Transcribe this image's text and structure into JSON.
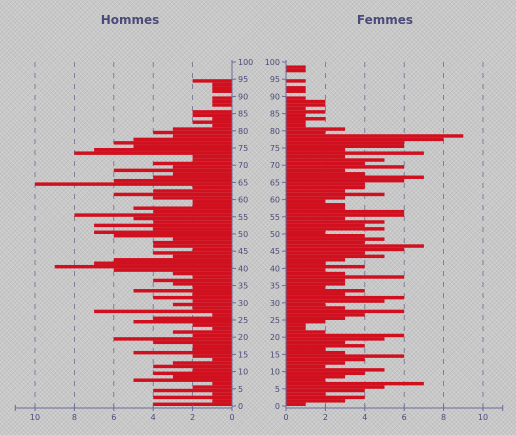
{
  "colors": {
    "bar": "#d0101e",
    "axis": "#6a6a9a",
    "grid": "#6e6e8e",
    "label": "#4b4b7a"
  },
  "chart_data": [
    {
      "type": "bar",
      "orientation": "horizontal",
      "title": "Hommes",
      "direction": "right-to-left",
      "xlim": [
        0,
        11
      ],
      "x_ticks": [
        0,
        2,
        4,
        6,
        8,
        10
      ],
      "y_ticks": [
        0,
        5,
        10,
        15,
        20,
        25,
        30,
        35,
        40,
        45,
        50,
        55,
        60,
        65,
        70,
        75,
        80,
        85,
        90,
        95,
        100
      ],
      "ages": [
        0,
        1,
        2,
        3,
        4,
        5,
        6,
        7,
        8,
        9,
        10,
        11,
        12,
        13,
        14,
        15,
        16,
        17,
        18,
        19,
        20,
        21,
        22,
        23,
        24,
        25,
        26,
        27,
        28,
        29,
        30,
        31,
        32,
        33,
        34,
        35,
        36,
        37,
        38,
        39,
        40,
        41,
        42,
        43,
        44,
        45,
        46,
        47,
        48,
        49,
        50,
        51,
        52,
        53,
        54,
        55,
        56,
        57,
        58,
        59,
        60,
        61,
        62,
        63,
        64,
        65,
        66,
        67,
        68,
        69,
        70,
        71,
        72,
        73,
        74,
        75,
        76,
        77,
        78,
        79,
        80,
        81,
        82,
        83,
        84,
        85,
        86,
        87,
        88,
        89,
        90,
        91,
        92,
        93,
        94,
        95,
        96,
        97,
        98,
        99
      ],
      "values": [
        4,
        1,
        4,
        1,
        4,
        2,
        1,
        5,
        3,
        4,
        2,
        4,
        3,
        1,
        2,
        5,
        2,
        2,
        4,
        6,
        2,
        3,
        1,
        2,
        5,
        4,
        1,
        7,
        2,
        3,
        2,
        4,
        2,
        5,
        2,
        3,
        4,
        2,
        3,
        6,
        9,
        7,
        6,
        3,
        4,
        2,
        4,
        4,
        3,
        6,
        7,
        4,
        7,
        4,
        5,
        8,
        4,
        5,
        2,
        2,
        4,
        6,
        4,
        2,
        10,
        6,
        4,
        3,
        6,
        3,
        4,
        2,
        2,
        8,
        7,
        5,
        6,
        5,
        3,
        4,
        3,
        1,
        2,
        1,
        2,
        2,
        0,
        1,
        1,
        1,
        0,
        1,
        1,
        1,
        2,
        0,
        0,
        0,
        0,
        0
      ]
    },
    {
      "type": "bar",
      "orientation": "horizontal",
      "title": "Femmes",
      "direction": "left-to-right",
      "xlim": [
        0,
        11
      ],
      "x_ticks": [
        0,
        2,
        4,
        6,
        8,
        10
      ],
      "y_ticks": [
        0,
        5,
        10,
        15,
        20,
        25,
        30,
        35,
        40,
        45,
        50,
        55,
        60,
        65,
        70,
        75,
        80,
        85,
        90,
        95,
        100
      ],
      "ages": [
        0,
        1,
        2,
        3,
        4,
        5,
        6,
        7,
        8,
        9,
        10,
        11,
        12,
        13,
        14,
        15,
        16,
        17,
        18,
        19,
        20,
        21,
        22,
        23,
        24,
        25,
        26,
        27,
        28,
        29,
        30,
        31,
        32,
        33,
        34,
        35,
        36,
        37,
        38,
        39,
        40,
        41,
        42,
        43,
        44,
        45,
        46,
        47,
        48,
        49,
        50,
        51,
        52,
        53,
        54,
        55,
        56,
        57,
        58,
        59,
        60,
        61,
        62,
        63,
        64,
        65,
        66,
        67,
        68,
        69,
        70,
        71,
        72,
        73,
        74,
        75,
        76,
        77,
        78,
        79,
        80,
        81,
        82,
        83,
        84,
        85,
        86,
        87,
        88,
        89,
        90,
        91,
        92,
        93,
        94,
        95,
        96,
        97,
        98,
        99
      ],
      "values": [
        1,
        3,
        4,
        2,
        4,
        5,
        7,
        2,
        3,
        4,
        5,
        2,
        3,
        4,
        6,
        3,
        2,
        4,
        3,
        5,
        6,
        2,
        1,
        1,
        2,
        3,
        4,
        6,
        3,
        2,
        5,
        6,
        3,
        4,
        2,
        3,
        3,
        6,
        3,
        2,
        4,
        2,
        3,
        5,
        4,
        6,
        7,
        4,
        5,
        4,
        2,
        5,
        4,
        5,
        3,
        6,
        6,
        3,
        3,
        2,
        3,
        5,
        3,
        4,
        4,
        6,
        7,
        4,
        3,
        6,
        4,
        5,
        3,
        7,
        3,
        6,
        6,
        8,
        9,
        2,
        3,
        1,
        1,
        2,
        1,
        2,
        1,
        2,
        2,
        1,
        0,
        1,
        1,
        0,
        1,
        0,
        0,
        1,
        1,
        0
      ]
    }
  ]
}
